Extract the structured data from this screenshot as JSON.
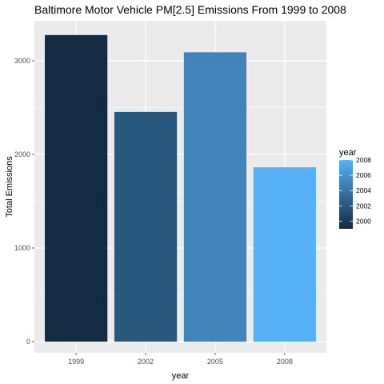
{
  "chart_data": {
    "type": "bar",
    "title": "Baltimore Motor Vehicle PM[2.5] Emissions From 1999 to 2008",
    "xlabel": "year",
    "ylabel": "Total Emissions",
    "categories": [
      "1999",
      "2002",
      "2005",
      "2008"
    ],
    "values": [
      3275,
      2454,
      3091,
      1862
    ],
    "fill_years": [
      1999,
      2002,
      2005,
      2008
    ],
    "ylim": [
      0,
      3400
    ],
    "yticks": [
      0,
      1000,
      2000,
      3000
    ],
    "ytick_labels": [
      "0",
      "1000",
      "2000",
      "3000"
    ],
    "grid": true,
    "panel_background": "#ebebeb",
    "gridline_color": "#ffffff",
    "legend": {
      "title": "year",
      "position": "right",
      "type": "colorbar",
      "range": [
        1999,
        2008
      ],
      "breaks": [
        2000,
        2002,
        2004,
        2006,
        2008
      ],
      "labels": [
        "2000",
        "2002",
        "2004",
        "2006",
        "2008"
      ],
      "low_color": "#132b43",
      "high_color": "#56b1f7"
    }
  }
}
